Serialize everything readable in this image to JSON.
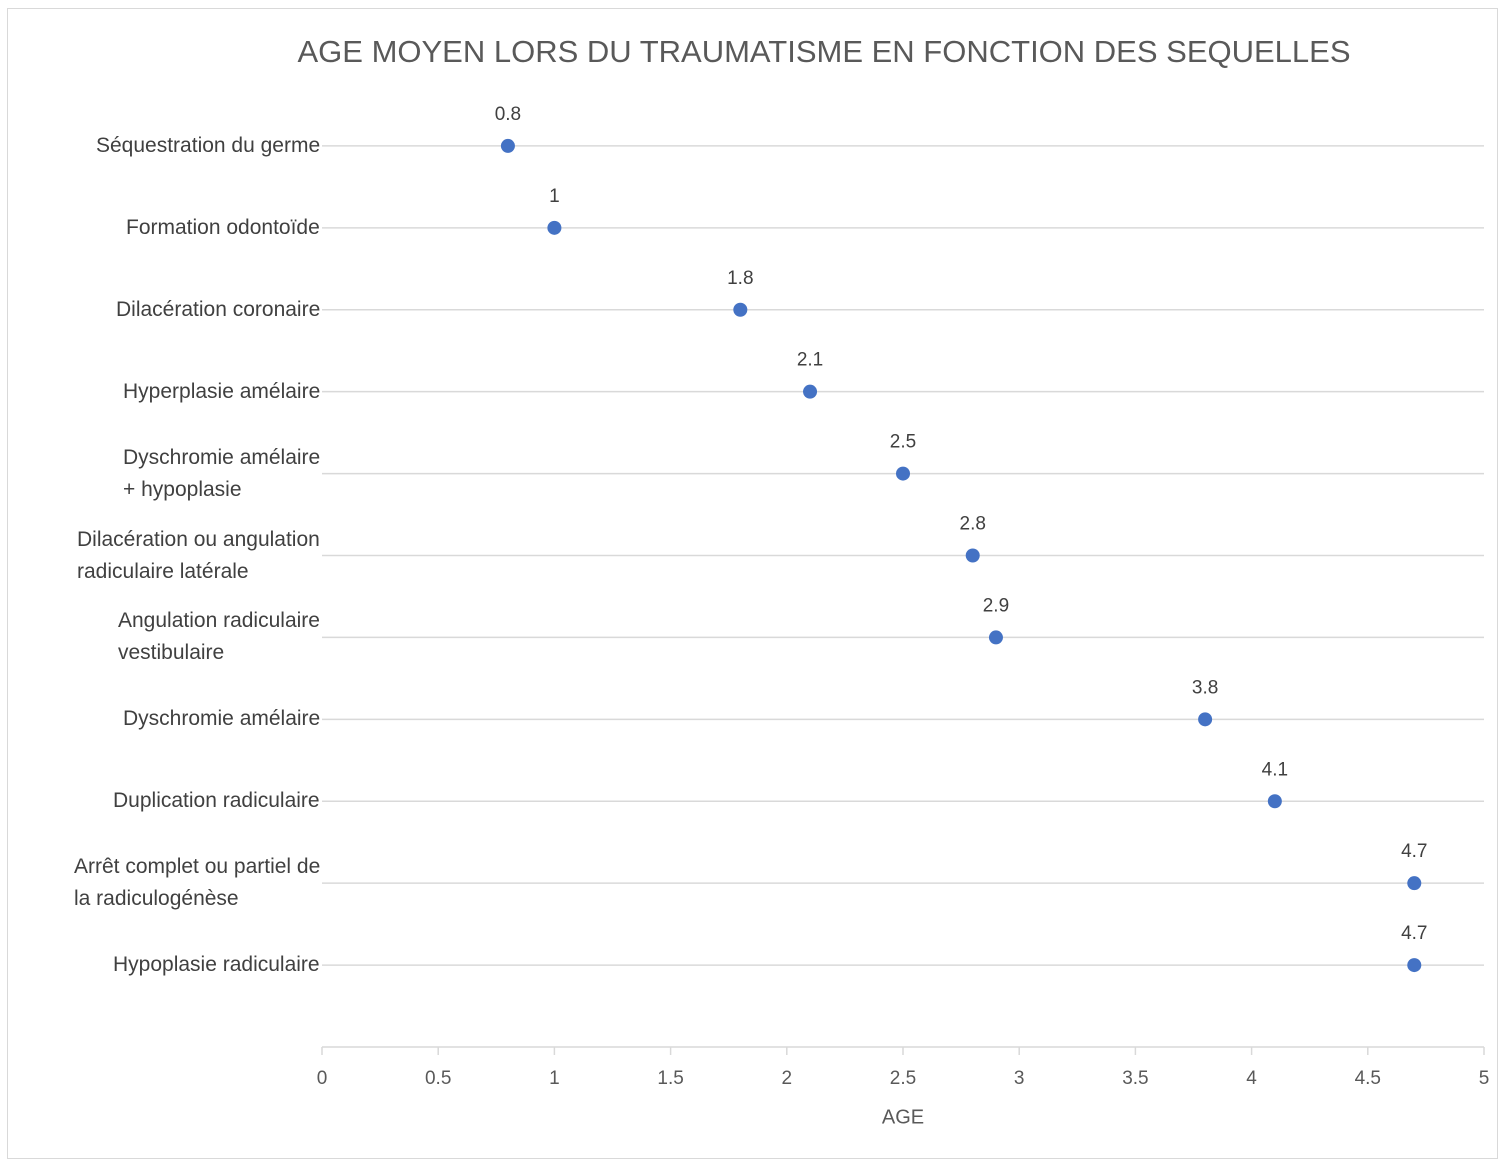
{
  "chart_data": {
    "type": "dot",
    "title": "AGE MOYEN LORS DU TRAUMATISME EN FONCTION DES SEQUELLES",
    "x_label": "AGE",
    "categories": [
      "Séquestration du germe",
      "Formation odontoïde",
      "Dilacération coronaire",
      "Hyperplasie amélaire",
      "Dyschromie  amélaire\n+ hypoplasie",
      "Dilacération ou angulation\nradiculaire latérale",
      "Angulation radiculaire\nvestibulaire",
      "Dyschromie amélaire",
      "Duplication radiculaire",
      "Arrêt complet ou partiel de\nla radiculogénèse",
      "Hypoplasie radiculaire"
    ],
    "values": [
      0.8,
      1,
      1.8,
      2.1,
      2.5,
      2.8,
      2.9,
      3.8,
      4.1,
      4.7,
      4.7
    ],
    "color": "#4472c4",
    "xlim": [
      0,
      5
    ],
    "xticks": [
      0,
      0.5,
      1,
      1.5,
      2,
      2.5,
      3,
      3.5,
      4,
      4.5,
      5
    ]
  }
}
